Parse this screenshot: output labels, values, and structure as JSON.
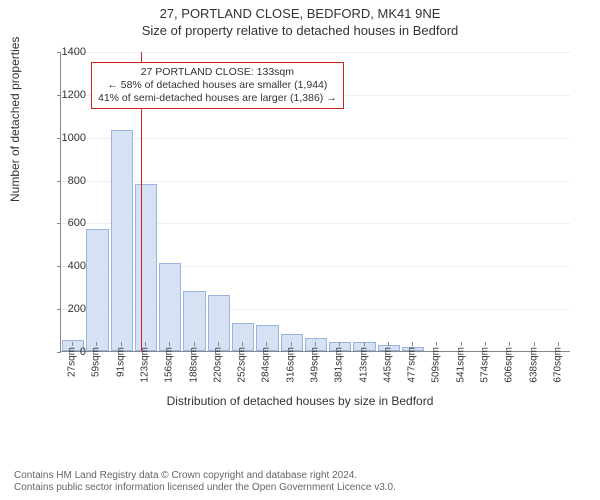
{
  "title": {
    "line1": "27, PORTLAND CLOSE, BEDFORD, MK41 9NE",
    "line2": "Size of property relative to detached houses in Bedford"
  },
  "chart": {
    "type": "histogram",
    "ylim": [
      0,
      1400
    ],
    "ytick_step": 200,
    "yticks": [
      0,
      200,
      400,
      600,
      800,
      1000,
      1200,
      1400
    ],
    "ylabel": "Number of detached properties",
    "xlabel": "Distribution of detached houses by size in Bedford",
    "categories": [
      "27sqm",
      "59sqm",
      "91sqm",
      "123sqm",
      "156sqm",
      "188sqm",
      "220sqm",
      "252sqm",
      "284sqm",
      "316sqm",
      "349sqm",
      "381sqm",
      "413sqm",
      "445sqm",
      "477sqm",
      "509sqm",
      "541sqm",
      "574sqm",
      "606sqm",
      "638sqm",
      "670sqm"
    ],
    "values": [
      50,
      570,
      1030,
      780,
      410,
      280,
      260,
      130,
      120,
      80,
      60,
      40,
      40,
      30,
      20,
      0,
      0,
      0,
      0,
      0,
      0
    ],
    "bar_fill": "#d7e1f4",
    "bar_stroke": "#9cb3de",
    "background_color": "#ffffff",
    "grid_color": "#eeeeee",
    "axis_color": "#888888",
    "bar_width_ratio": 0.92,
    "tick_fontsize": 11,
    "label_fontsize": 12
  },
  "marker": {
    "position_category_index": 3.3,
    "color": "#d02020"
  },
  "annotation": {
    "line1": "27 PORTLAND CLOSE: 133sqm",
    "line2": "← 58% of detached houses are smaller (1,944)",
    "line3": "41% of semi-detached houses are larger (1,386) →",
    "border_color": "#d02020",
    "background": "#ffffff",
    "fontsize": 10.5
  },
  "footer": {
    "line1": "Contains HM Land Registry data © Crown copyright and database right 2024.",
    "line2": "Contains public sector information licensed under the Open Government Licence v3.0."
  }
}
